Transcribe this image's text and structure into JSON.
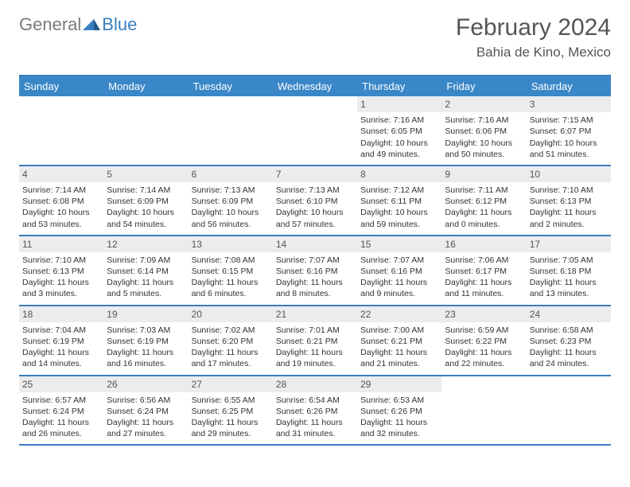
{
  "logo": {
    "text1": "General",
    "text2": "Blue",
    "color_general": "#7a7a7a",
    "color_blue": "#3a7fbf"
  },
  "title": {
    "month": "February 2024",
    "location": "Bahia de Kino, Mexico"
  },
  "colors": {
    "header_bg": "#3a87c7",
    "header_text": "#ffffff",
    "border": "#3a7fbf",
    "daynum_bg": "#ececec",
    "text": "#333333"
  },
  "day_names": [
    "Sunday",
    "Monday",
    "Tuesday",
    "Wednesday",
    "Thursday",
    "Friday",
    "Saturday"
  ],
  "weeks": [
    [
      {
        "empty": true
      },
      {
        "empty": true
      },
      {
        "empty": true
      },
      {
        "empty": true
      },
      {
        "n": "1",
        "sunrise": "7:16 AM",
        "sunset": "6:05 PM",
        "daylight": "10 hours and 49 minutes."
      },
      {
        "n": "2",
        "sunrise": "7:16 AM",
        "sunset": "6:06 PM",
        "daylight": "10 hours and 50 minutes."
      },
      {
        "n": "3",
        "sunrise": "7:15 AM",
        "sunset": "6:07 PM",
        "daylight": "10 hours and 51 minutes."
      }
    ],
    [
      {
        "n": "4",
        "sunrise": "7:14 AM",
        "sunset": "6:08 PM",
        "daylight": "10 hours and 53 minutes."
      },
      {
        "n": "5",
        "sunrise": "7:14 AM",
        "sunset": "6:09 PM",
        "daylight": "10 hours and 54 minutes."
      },
      {
        "n": "6",
        "sunrise": "7:13 AM",
        "sunset": "6:09 PM",
        "daylight": "10 hours and 56 minutes."
      },
      {
        "n": "7",
        "sunrise": "7:13 AM",
        "sunset": "6:10 PM",
        "daylight": "10 hours and 57 minutes."
      },
      {
        "n": "8",
        "sunrise": "7:12 AM",
        "sunset": "6:11 PM",
        "daylight": "10 hours and 59 minutes."
      },
      {
        "n": "9",
        "sunrise": "7:11 AM",
        "sunset": "6:12 PM",
        "daylight": "11 hours and 0 minutes."
      },
      {
        "n": "10",
        "sunrise": "7:10 AM",
        "sunset": "6:13 PM",
        "daylight": "11 hours and 2 minutes."
      }
    ],
    [
      {
        "n": "11",
        "sunrise": "7:10 AM",
        "sunset": "6:13 PM",
        "daylight": "11 hours and 3 minutes."
      },
      {
        "n": "12",
        "sunrise": "7:09 AM",
        "sunset": "6:14 PM",
        "daylight": "11 hours and 5 minutes."
      },
      {
        "n": "13",
        "sunrise": "7:08 AM",
        "sunset": "6:15 PM",
        "daylight": "11 hours and 6 minutes."
      },
      {
        "n": "14",
        "sunrise": "7:07 AM",
        "sunset": "6:16 PM",
        "daylight": "11 hours and 8 minutes."
      },
      {
        "n": "15",
        "sunrise": "7:07 AM",
        "sunset": "6:16 PM",
        "daylight": "11 hours and 9 minutes."
      },
      {
        "n": "16",
        "sunrise": "7:06 AM",
        "sunset": "6:17 PM",
        "daylight": "11 hours and 11 minutes."
      },
      {
        "n": "17",
        "sunrise": "7:05 AM",
        "sunset": "6:18 PM",
        "daylight": "11 hours and 13 minutes."
      }
    ],
    [
      {
        "n": "18",
        "sunrise": "7:04 AM",
        "sunset": "6:19 PM",
        "daylight": "11 hours and 14 minutes."
      },
      {
        "n": "19",
        "sunrise": "7:03 AM",
        "sunset": "6:19 PM",
        "daylight": "11 hours and 16 minutes."
      },
      {
        "n": "20",
        "sunrise": "7:02 AM",
        "sunset": "6:20 PM",
        "daylight": "11 hours and 17 minutes."
      },
      {
        "n": "21",
        "sunrise": "7:01 AM",
        "sunset": "6:21 PM",
        "daylight": "11 hours and 19 minutes."
      },
      {
        "n": "22",
        "sunrise": "7:00 AM",
        "sunset": "6:21 PM",
        "daylight": "11 hours and 21 minutes."
      },
      {
        "n": "23",
        "sunrise": "6:59 AM",
        "sunset": "6:22 PM",
        "daylight": "11 hours and 22 minutes."
      },
      {
        "n": "24",
        "sunrise": "6:58 AM",
        "sunset": "6:23 PM",
        "daylight": "11 hours and 24 minutes."
      }
    ],
    [
      {
        "n": "25",
        "sunrise": "6:57 AM",
        "sunset": "6:24 PM",
        "daylight": "11 hours and 26 minutes."
      },
      {
        "n": "26",
        "sunrise": "6:56 AM",
        "sunset": "6:24 PM",
        "daylight": "11 hours and 27 minutes."
      },
      {
        "n": "27",
        "sunrise": "6:55 AM",
        "sunset": "6:25 PM",
        "daylight": "11 hours and 29 minutes."
      },
      {
        "n": "28",
        "sunrise": "6:54 AM",
        "sunset": "6:26 PM",
        "daylight": "11 hours and 31 minutes."
      },
      {
        "n": "29",
        "sunrise": "6:53 AM",
        "sunset": "6:26 PM",
        "daylight": "11 hours and 32 minutes."
      },
      {
        "empty": true
      },
      {
        "empty": true
      }
    ]
  ],
  "labels": {
    "sunrise": "Sunrise:",
    "sunset": "Sunset:",
    "daylight": "Daylight:"
  }
}
